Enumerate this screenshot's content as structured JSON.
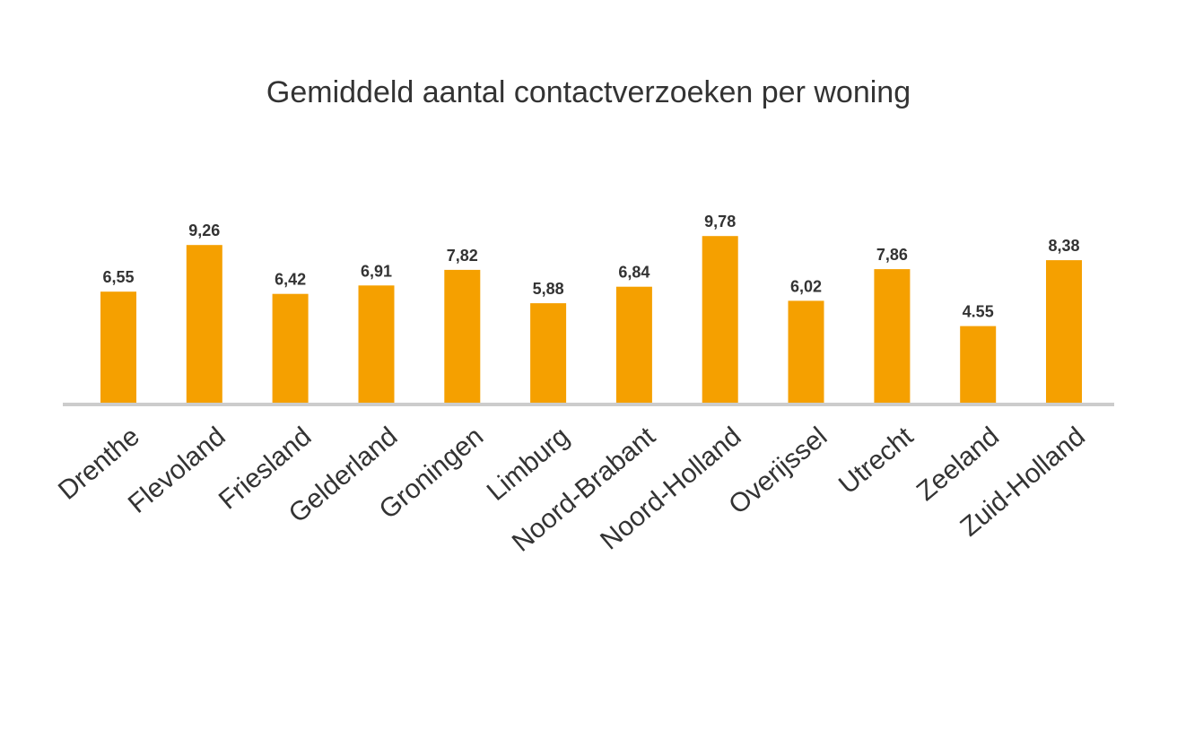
{
  "chart_data": {
    "type": "bar",
    "title": "Gemiddeld aantal contactverzoeken per woning",
    "xlabel": "",
    "ylabel": "",
    "grid": false,
    "legend": "none",
    "ylim": [
      0,
      10
    ],
    "categories": [
      "Drenthe",
      "Flevoland",
      "Friesland",
      "Gelderland",
      "Groningen",
      "Limburg",
      "Noord-Brabant",
      "Noord-Holland",
      "Overijssel",
      "Utrecht",
      "Zeeland",
      "Zuid-Holland"
    ],
    "values": [
      6.55,
      9.26,
      6.42,
      6.91,
      7.82,
      5.88,
      6.84,
      9.78,
      6.02,
      7.86,
      4.55,
      8.38
    ],
    "value_labels": [
      "6,55",
      "9,26",
      "6,42",
      "6,91",
      "7,82",
      "5,88",
      "6,84",
      "9,78",
      "6,02",
      "7,86",
      "4.55",
      "8,38"
    ],
    "bar_color": "#F5A000",
    "axis_color": "#CCCCCC",
    "text_color": "#333333"
  }
}
